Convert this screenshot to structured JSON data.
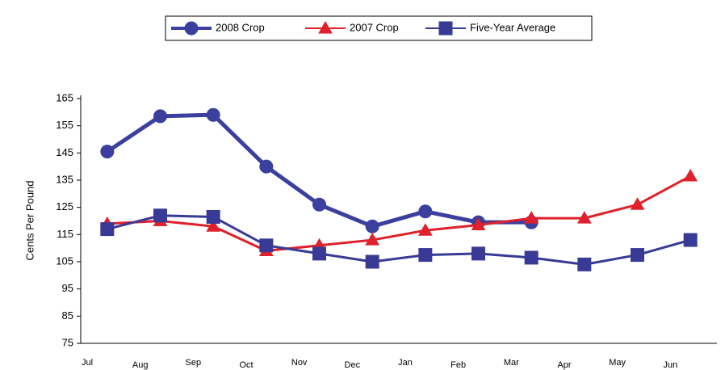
{
  "chart_data": {
    "type": "line",
    "categories": [
      "Jul",
      "Aug",
      "Sep",
      "Oct",
      "Nov",
      "Dec",
      "Jan",
      "Feb",
      "Mar",
      "Apr",
      "May",
      "Jun"
    ],
    "y_label": "Cents Per Pound",
    "series": [
      {
        "name": "2008 Crop",
        "color": "#3b3f9e",
        "marker": "circle",
        "values": [
          145.5,
          158.5,
          159,
          140,
          126,
          118,
          123.5,
          119.5,
          119.5,
          null,
          null,
          null
        ]
      },
      {
        "name": "2007 Crop",
        "color": "#e0202a",
        "marker": "triangle",
        "values": [
          119,
          120,
          118,
          109,
          111,
          113,
          116.5,
          118.5,
          121,
          121,
          126,
          136.5
        ]
      },
      {
        "name": "Five-Year Average",
        "color": "#383a95",
        "marker": "square",
        "values": [
          117,
          122,
          121.5,
          111,
          108,
          105,
          107.5,
          108,
          106.5,
          104,
          107.5,
          113
        ]
      }
    ],
    "ylim": [
      75,
      165
    ],
    "yticks": [
      75,
      85,
      95,
      105,
      115,
      125,
      135,
      145,
      155,
      165
    ],
    "grid": false,
    "legend": "top"
  }
}
